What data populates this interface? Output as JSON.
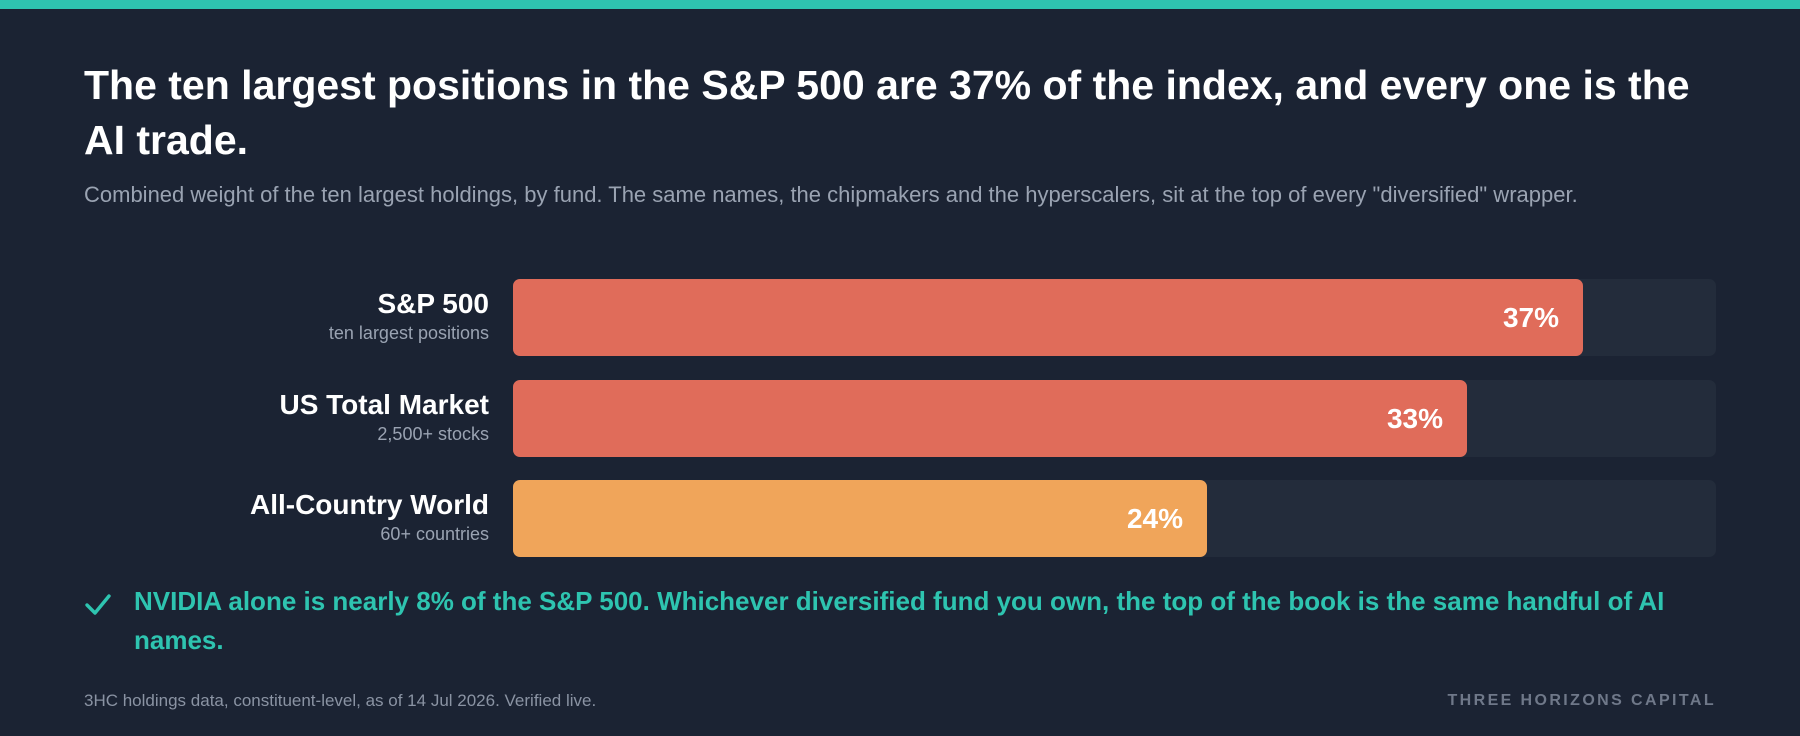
{
  "colors": {
    "background": "#1b2333",
    "accent": "#2ec4b0",
    "track": "#232c3b",
    "bar_high": "#e06c5a",
    "bar_mid": "#f0a55a"
  },
  "header": {
    "headline": "The ten largest positions in the S&P 500 are 37% of the index, and every one is the AI trade.",
    "subtitle": "Combined weight of the ten largest holdings, by fund. The same names, the chipmakers and the hyperscalers, sit at the top of every \"diversified\" wrapper."
  },
  "chart_data": {
    "type": "bar",
    "orientation": "horizontal",
    "title": "",
    "xlabel": "",
    "ylabel": "",
    "xlim": [
      0,
      41.6
    ],
    "categories": [
      "S&P 500",
      "US Total Market",
      "All-Country World"
    ],
    "sublabels": [
      "ten largest positions",
      "2,500+ stocks",
      "60+ countries"
    ],
    "values": [
      37,
      33,
      24
    ],
    "value_labels": [
      "37%",
      "33%",
      "24%"
    ],
    "bar_colors": [
      "#e06c5a",
      "#e06c5a",
      "#f0a55a"
    ],
    "grid": false,
    "legend": "none"
  },
  "callout": {
    "icon": "check-icon",
    "text": "NVIDIA alone is nearly 8% of the S&P 500. Whichever diversified fund you own, the top of the book is the same handful of AI names."
  },
  "footer": {
    "source": "3HC holdings data, constituent-level, as of 14 Jul 2026. Verified live.",
    "brand": "THREE HORIZONS CAPITAL"
  }
}
